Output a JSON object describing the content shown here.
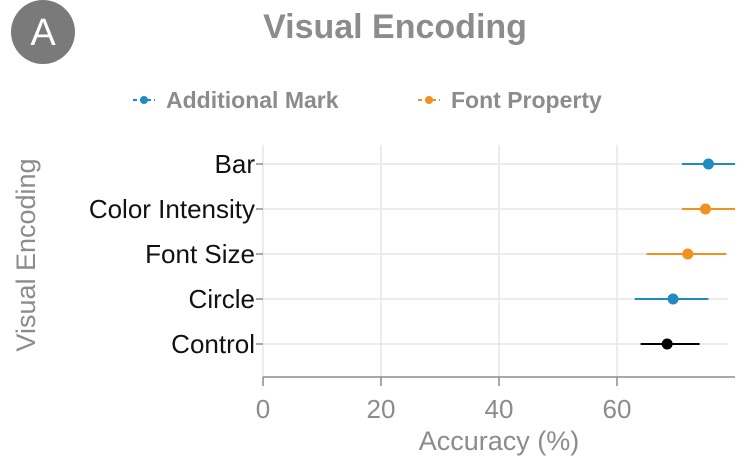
{
  "panel": {
    "badge": "A"
  },
  "chart_data": {
    "type": "scatter",
    "title": "Visual Encoding",
    "xlabel": "Accuracy (%)",
    "ylabel": "Visual Encoding",
    "xlim": [
      0,
      80
    ],
    "xticks": [
      0,
      20,
      40,
      60
    ],
    "grid": true,
    "legend_position": "top",
    "categories": [
      "Bar",
      "Color Intensity",
      "Font Size",
      "Circle",
      "Control"
    ],
    "series": [
      {
        "name": "Additional Mark",
        "color": "#1f8cc0",
        "points": [
          {
            "category": "Bar",
            "value": 75.5,
            "ci": [
              71,
              80
            ]
          },
          {
            "category": "Circle",
            "value": 69.5,
            "ci": [
              63,
              75.5
            ]
          }
        ]
      },
      {
        "name": "Font Property",
        "color": "#f39020",
        "points": [
          {
            "category": "Color Intensity",
            "value": 75,
            "ci": [
              71,
              80
            ]
          },
          {
            "category": "Font Size",
            "value": 72,
            "ci": [
              65,
              78.5
            ]
          }
        ]
      },
      {
        "color": "#000000",
        "points": [
          {
            "category": "Control",
            "value": 68.5,
            "ci": [
              64,
              74
            ]
          }
        ]
      }
    ]
  }
}
